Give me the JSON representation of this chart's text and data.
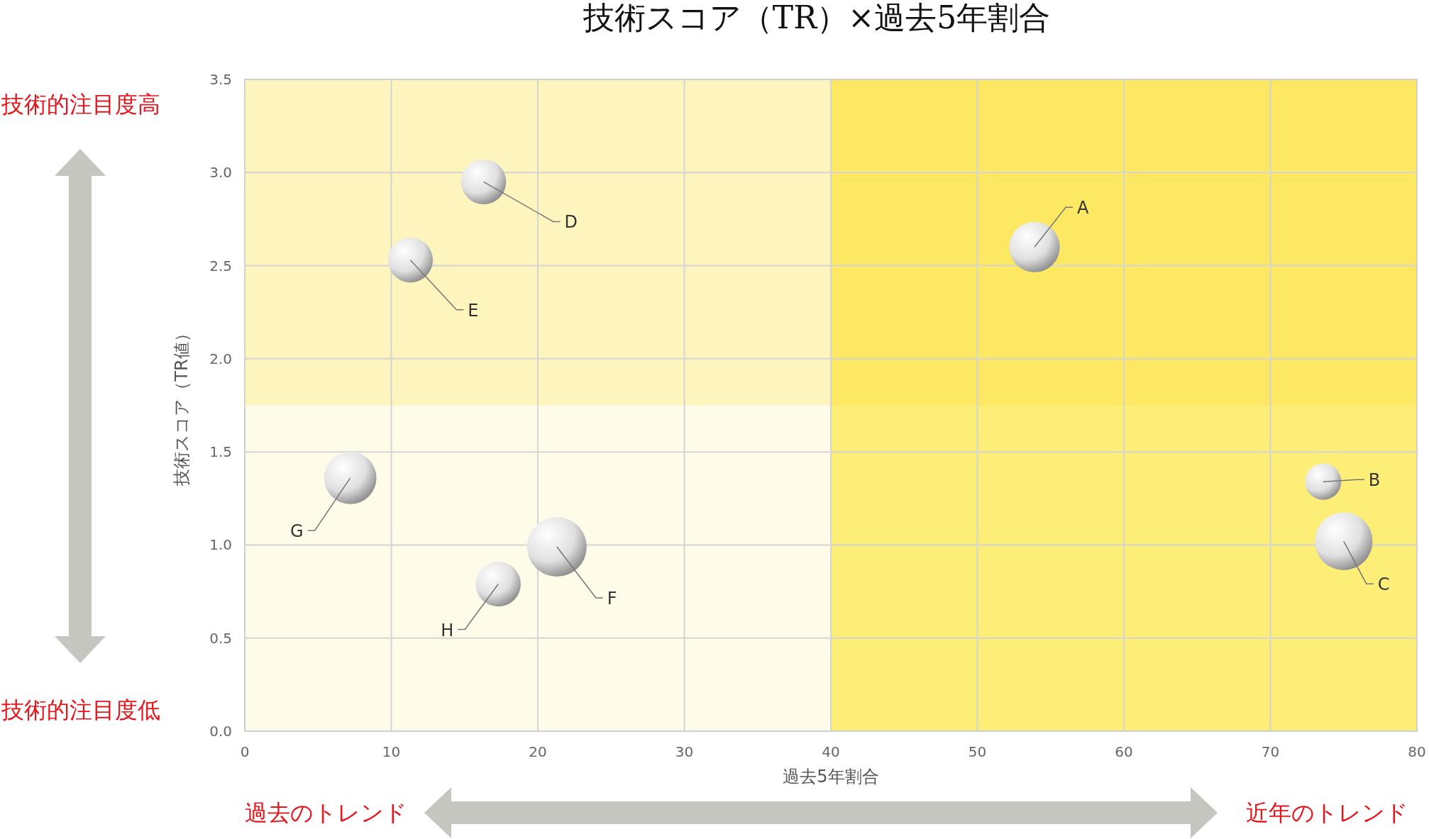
{
  "chart_data": {
    "type": "bubble",
    "title": "技術スコア（TR）×過去5年割合",
    "xlabel": "過去5年割合",
    "ylabel": "技術スコア（TR値）",
    "series": [
      {
        "color": "#e0e0e0",
        "x": [
          53.9,
          73.6,
          75.0,
          16.3,
          11.3,
          21.3,
          7.2,
          17.3
        ],
        "values": [
          2.6,
          1.34,
          1.02,
          2.95,
          2.53,
          0.99,
          1.36,
          0.79
        ],
        "sizes": [
          0.72,
          0.37,
          0.94,
          0.57,
          0.57,
          1,
          0.77,
          0.57
        ]
      }
    ],
    "xlim": [
      0,
      80
    ],
    "xticks": [
      0,
      10,
      20,
      30,
      40,
      50,
      60,
      70,
      80
    ],
    "ylim": [
      0,
      3.5
    ],
    "yticks": [
      {
        "value": 0,
        "label": "0.0"
      },
      {
        "value": 0.5,
        "label": "0.5"
      },
      {
        "value": 1,
        "label": "1.0"
      },
      {
        "value": 1.5,
        "label": "1.5"
      },
      {
        "value": 2,
        "label": "2.0"
      },
      {
        "value": 2.5,
        "label": "2.5"
      },
      {
        "value": 3,
        "label": "3.0"
      },
      {
        "value": 3.5,
        "label": "3.5"
      }
    ],
    "grid": true,
    "bands": [
      {
        "axis": "y",
        "from": 1.75,
        "to": 3.5,
        "color": "#fef9d0"
      },
      {
        "axis": "x",
        "from": 40,
        "to": 80,
        "color": "#fef284"
      }
    ],
    "annotations": [
      "技術的注目度高",
      "技術的注目度低",
      "過去のトレンド",
      "近年のトレンド",
      {
        "text": "A",
        "x": 53.9,
        "y": 2.6
      },
      {
        "text": "B",
        "x": 73.6,
        "y": 1.34
      },
      {
        "text": "C",
        "x": 75.0,
        "y": 1.02
      },
      {
        "text": "D",
        "x": 16.3,
        "y": 2.95
      },
      {
        "text": "E",
        "x": 11.3,
        "y": 2.53
      },
      {
        "text": "F",
        "x": 21.3,
        "y": 0.99
      },
      {
        "text": "G",
        "x": 7.2,
        "y": 1.36
      },
      {
        "text": "H",
        "x": 17.3,
        "y": 0.79
      }
    ]
  }
}
